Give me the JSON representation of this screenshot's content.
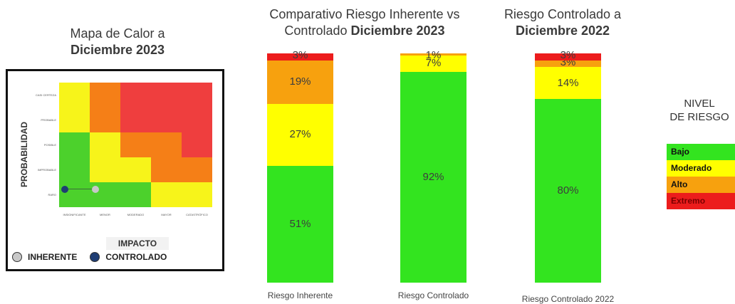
{
  "colors": {
    "bajo": "#33e41f",
    "moderado": "#ffff00",
    "alto": "#f7a10e",
    "extremo": "#ec1c1c",
    "hm_green": "#4cd12c",
    "hm_yellow": "#f7f41a",
    "hm_orange": "#f57f17",
    "hm_red": "#ef3e3e",
    "inherente": "#c8c8c8",
    "controlado": "#1f3d73"
  },
  "heatmap": {
    "title_line1": "Mapa de Calor a",
    "title_line2": "Diciembre 2023",
    "y_axis_title": "PROBABILIDAD",
    "x_axis_title": "IMPACTO",
    "y_labels": [
      "CASI CERTEZA",
      "PROBABLE",
      "POSIBLE",
      "IMPROBABLE",
      "RARO"
    ],
    "x_labels": [
      "INSIGNIFICANTE",
      "MENOR",
      "MODERADO",
      "MAYOR",
      "CATASTRÓFICO"
    ],
    "grid": [
      [
        "moderado",
        "alto",
        "extremo",
        "extremo",
        "extremo"
      ],
      [
        "moderado",
        "alto",
        "extremo",
        "extremo",
        "extremo"
      ],
      [
        "bajo",
        "moderado",
        "alto",
        "alto",
        "extremo"
      ],
      [
        "bajo",
        "moderado",
        "moderado",
        "alto",
        "alto"
      ],
      [
        "bajo",
        "bajo",
        "bajo",
        "moderado",
        "moderado"
      ]
    ],
    "points": [
      {
        "series": "controlado",
        "probabilidad": "RARO",
        "impacto": "INSIGNIFICANTE"
      },
      {
        "series": "inherente",
        "probabilidad": "RARO",
        "impacto": "MENOR"
      }
    ],
    "legend": {
      "inherente": "INHERENTE",
      "controlado": "CONTROLADO"
    }
  },
  "chart_data": [
    {
      "type": "bar",
      "title": "Comparativo Riesgo Inherente vs Controlado Diciembre 2023",
      "title_line1": "Comparativo Riesgo Inherente vs",
      "title_line2_plain": "Controlado ",
      "title_line2_bold": "Diciembre 2023",
      "stacked": true,
      "categories": [
        "Riesgo Inherente",
        "Riesgo Controlado"
      ],
      "series": [
        {
          "name": "Bajo",
          "values": [
            51,
            92
          ],
          "labels": [
            "51%",
            "92%"
          ]
        },
        {
          "name": "Moderado",
          "values": [
            27,
            7
          ],
          "labels": [
            "27%",
            "7%"
          ]
        },
        {
          "name": "Alto",
          "values": [
            19,
            1
          ],
          "labels": [
            "19%",
            "1%"
          ]
        },
        {
          "name": "Extremo",
          "values": [
            3,
            0
          ],
          "labels": [
            "3%",
            ""
          ]
        }
      ]
    },
    {
      "type": "bar",
      "title": "Riesgo Controlado a Diciembre 2022",
      "title_line1": "Riesgo Controlado a",
      "title_line2_bold": "Diciembre 2022",
      "stacked": true,
      "categories": [
        "Riesgo Controlado 2022"
      ],
      "series": [
        {
          "name": "Bajo",
          "values": [
            80
          ],
          "labels": [
            "80%"
          ]
        },
        {
          "name": "Moderado",
          "values": [
            14
          ],
          "labels": [
            "14%"
          ]
        },
        {
          "name": "Alto",
          "values": [
            3
          ],
          "labels": [
            "3%"
          ]
        },
        {
          "name": "Extremo",
          "values": [
            3
          ],
          "labels": [
            "3%"
          ]
        }
      ]
    }
  ],
  "nivel": {
    "title_line1": "NIVEL",
    "title_line2": "DE RIESGO",
    "items": [
      {
        "key": "bajo",
        "label": "Bajo"
      },
      {
        "key": "moderado",
        "label": "Moderado"
      },
      {
        "key": "alto",
        "label": "Alto"
      },
      {
        "key": "extremo",
        "label": "Extremo"
      }
    ]
  }
}
